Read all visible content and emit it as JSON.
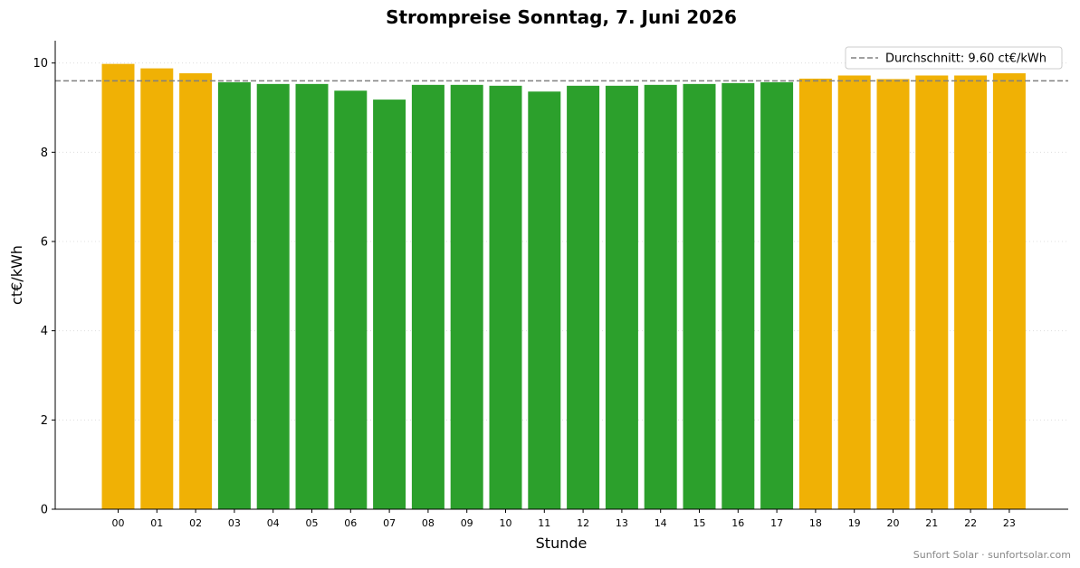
{
  "chart_data": {
    "type": "bar",
    "title": "Strompreise Sonntag, 7. Juni 2026",
    "xlabel": "Stunde",
    "ylabel": "ct€/kWh",
    "categories": [
      "00",
      "01",
      "02",
      "03",
      "04",
      "05",
      "06",
      "07",
      "08",
      "09",
      "10",
      "11",
      "12",
      "13",
      "14",
      "15",
      "16",
      "17",
      "18",
      "19",
      "20",
      "21",
      "22",
      "23"
    ],
    "values": [
      9.98,
      9.88,
      9.77,
      9.57,
      9.53,
      9.53,
      9.38,
      9.18,
      9.51,
      9.51,
      9.49,
      9.36,
      9.49,
      9.49,
      9.51,
      9.53,
      9.55,
      9.57,
      9.65,
      9.72,
      9.64,
      9.72,
      9.72,
      9.77
    ],
    "bar_colors": [
      "#f0b105",
      "#f0b105",
      "#f0b105",
      "#2ca02c",
      "#2ca02c",
      "#2ca02c",
      "#2ca02c",
      "#2ca02c",
      "#2ca02c",
      "#2ca02c",
      "#2ca02c",
      "#2ca02c",
      "#2ca02c",
      "#2ca02c",
      "#2ca02c",
      "#2ca02c",
      "#2ca02c",
      "#2ca02c",
      "#f0b105",
      "#f0b105",
      "#f0b105",
      "#f0b105",
      "#f0b105",
      "#f0b105"
    ],
    "ylim": [
      0,
      10.5
    ],
    "yticks": [
      0,
      2,
      4,
      6,
      8,
      10
    ],
    "average": {
      "value": 9.6,
      "label": "Durchschnitt: 9.60 ct€/kWh",
      "color": "#808080"
    },
    "grid": "horizontal-dotted",
    "legend_position": "top-right"
  },
  "footer": "Sunfort Solar · sunfortsolar.com"
}
